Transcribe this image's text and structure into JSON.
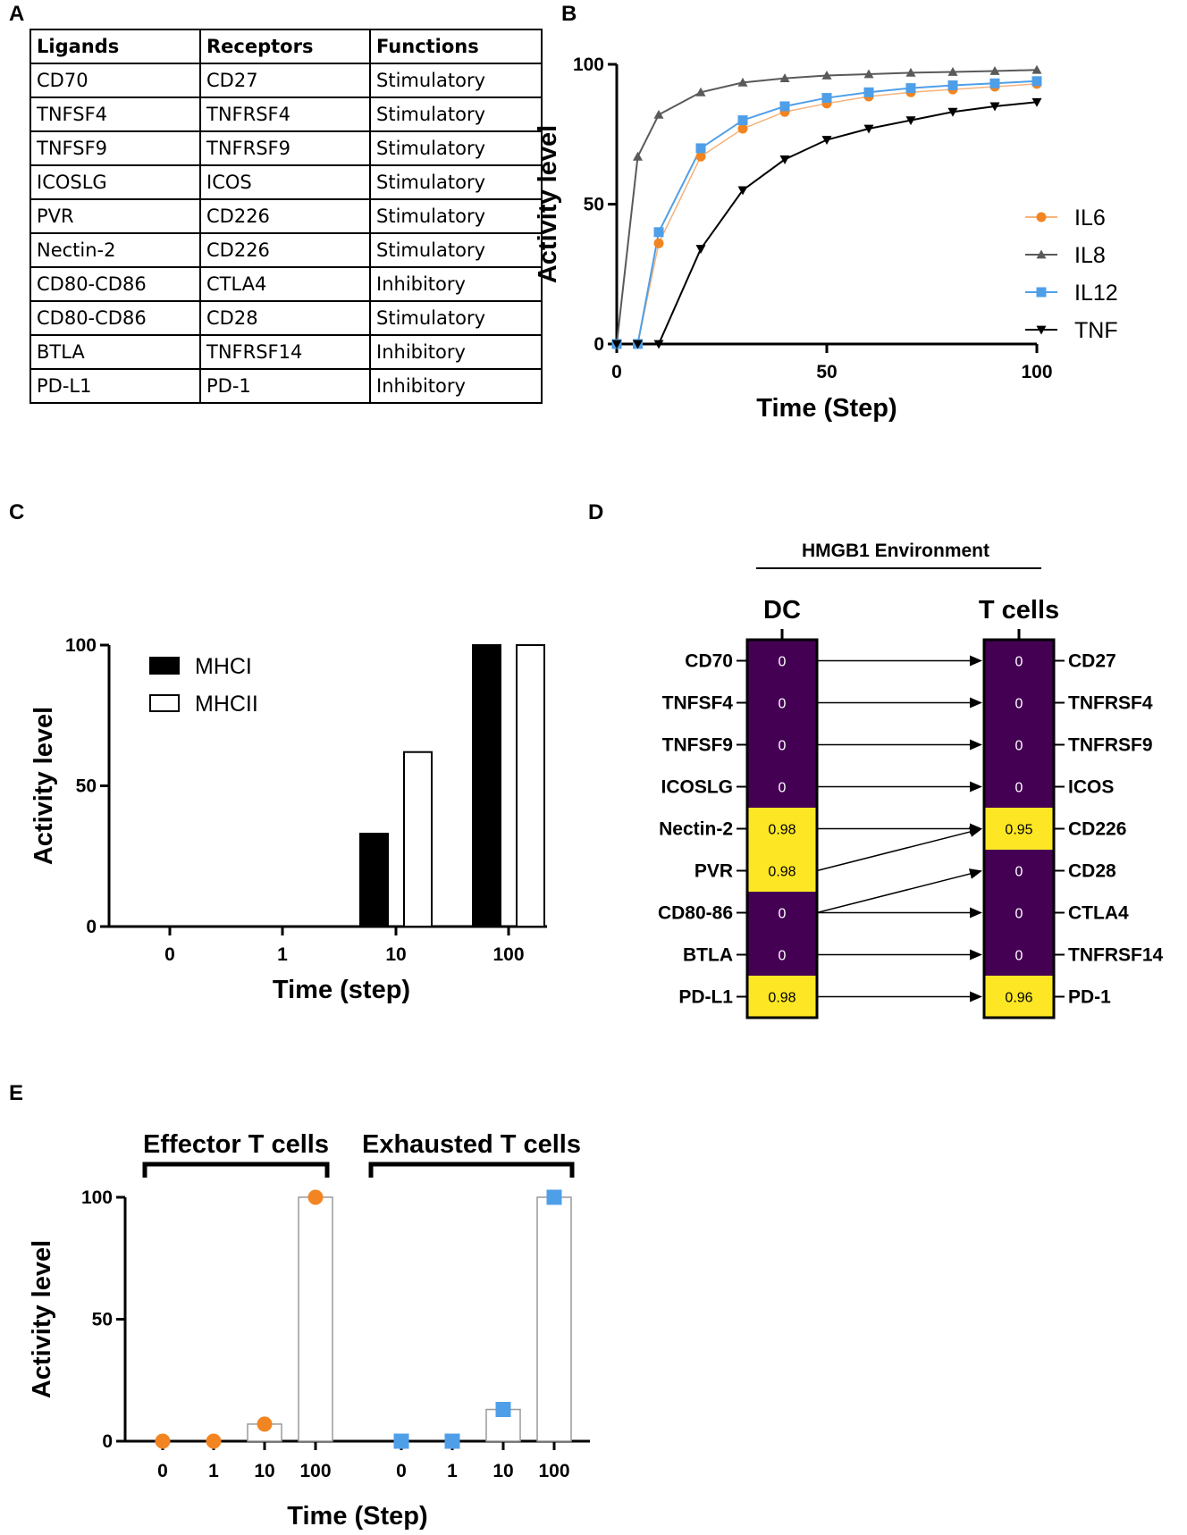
{
  "panels": {
    "A": "A",
    "B": "B",
    "C": "C",
    "D": "D",
    "E": "E"
  },
  "table": {
    "headers": [
      "Ligands",
      "Receptors",
      "Functions"
    ],
    "rows": [
      [
        "CD70",
        "CD27",
        "Stimulatory"
      ],
      [
        "TNFSF4",
        "TNFRSF4",
        "Stimulatory"
      ],
      [
        "TNFSF9",
        "TNFRSF9",
        "Stimulatory"
      ],
      [
        "ICOSLG",
        "ICOS",
        "Stimulatory"
      ],
      [
        "PVR",
        "CD226",
        "Stimulatory"
      ],
      [
        "Nectin-2",
        "CD226",
        "Stimulatory"
      ],
      [
        "CD80-CD86",
        "CTLA4",
        "Inhibitory"
      ],
      [
        "CD80-CD86",
        "CD28",
        "Stimulatory"
      ],
      [
        "BTLA",
        "TNFRSF14",
        "Inhibitory"
      ],
      [
        "PD-L1",
        "PD-1",
        "Inhibitory"
      ]
    ]
  },
  "chart_data": [
    {
      "id": "B",
      "type": "line",
      "xlabel": "Time (Step)",
      "ylabel": "Activity level",
      "xlim": [
        0,
        100
      ],
      "ylim": [
        0,
        100
      ],
      "xticks": [
        0,
        50,
        100
      ],
      "yticks": [
        0,
        50,
        100
      ],
      "x": [
        0,
        5,
        10,
        20,
        30,
        40,
        50,
        60,
        70,
        80,
        90,
        100
      ],
      "legend_position": "right",
      "series": [
        {
          "name": "IL6",
          "color": "#f28522",
          "line_color": "#f5b27a",
          "marker": "circle",
          "values": [
            0,
            0,
            36,
            67,
            77,
            83,
            86,
            88.5,
            90,
            91,
            92,
            93
          ]
        },
        {
          "name": "IL8",
          "color": "#5a5a5a",
          "line_color": "#5a5a5a",
          "marker": "triangle-up",
          "values": [
            0,
            67,
            82,
            90,
            93.5,
            95,
            96,
            96.5,
            97,
            97.3,
            97.6,
            98
          ]
        },
        {
          "name": "IL12",
          "color": "#4f9fe8",
          "line_color": "#4f9fe8",
          "marker": "square",
          "values": [
            0,
            0,
            40,
            70,
            80,
            85,
            88,
            90,
            91.5,
            92.5,
            93.2,
            94
          ]
        },
        {
          "name": "TNF",
          "color": "#000000",
          "line_color": "#000000",
          "marker": "triangle-down",
          "values": [
            0,
            0,
            0,
            34,
            55,
            66,
            73,
            77,
            80,
            83,
            85,
            86.5
          ]
        }
      ]
    },
    {
      "id": "C",
      "type": "bar",
      "xlabel": "Time (step)",
      "ylabel": "Activity level",
      "ylim": [
        0,
        100
      ],
      "yticks": [
        0,
        50,
        100
      ],
      "categories": [
        "0",
        "1",
        "10",
        "100"
      ],
      "legend_position": "top-left",
      "series": [
        {
          "name": "MHCI",
          "fill": "#000000",
          "values": [
            0,
            0,
            33,
            100
          ]
        },
        {
          "name": "MHCII",
          "fill": "#ffffff",
          "values": [
            0,
            0,
            62,
            100
          ]
        }
      ]
    },
    {
      "id": "E",
      "type": "bar",
      "xlabel": "Time (Step)",
      "ylabel": "Activity level",
      "ylim": [
        0,
        100
      ],
      "yticks": [
        0,
        50,
        100
      ],
      "groups": [
        {
          "name": "Effector T cells",
          "marker": "circle",
          "color": "#f28522",
          "categories": [
            "0",
            "1",
            "10",
            "100"
          ],
          "values": [
            0,
            0,
            7,
            100
          ]
        },
        {
          "name": "Exhausted T cells",
          "marker": "square",
          "color": "#4f9fe8",
          "categories": [
            "0",
            "1",
            "10",
            "100"
          ],
          "values": [
            0,
            0,
            13,
            100
          ]
        }
      ]
    },
    {
      "id": "D",
      "type": "heatmap",
      "title": "HMGB1 Environment",
      "left_header": "DC",
      "right_header": "T cells",
      "low_color": "#440154",
      "high_color": "#fde725",
      "ligands": [
        "CD70",
        "TNFSF4",
        "TNFSF9",
        "ICOSLG",
        "Nectin-2",
        "PVR",
        "CD80-86",
        "BTLA",
        "PD-L1"
      ],
      "ligand_values": [
        "0",
        "0",
        "0",
        "0",
        "0.98",
        "0.98",
        "0",
        "0",
        "0.98"
      ],
      "receptors": [
        "CD27",
        "TNFRSF4",
        "TNFRSF9",
        "ICOS",
        "CD226",
        "CD28",
        "CTLA4",
        "TNFRSF14",
        "PD-1"
      ],
      "receptor_values": [
        "0",
        "0",
        "0",
        "0",
        "0.95",
        "0",
        "0",
        "0",
        "0.96"
      ],
      "links": [
        [
          0,
          0
        ],
        [
          1,
          1
        ],
        [
          2,
          2
        ],
        [
          3,
          3
        ],
        [
          4,
          4
        ],
        [
          5,
          4
        ],
        [
          6,
          5
        ],
        [
          6,
          6
        ],
        [
          7,
          7
        ],
        [
          8,
          8
        ]
      ]
    }
  ]
}
